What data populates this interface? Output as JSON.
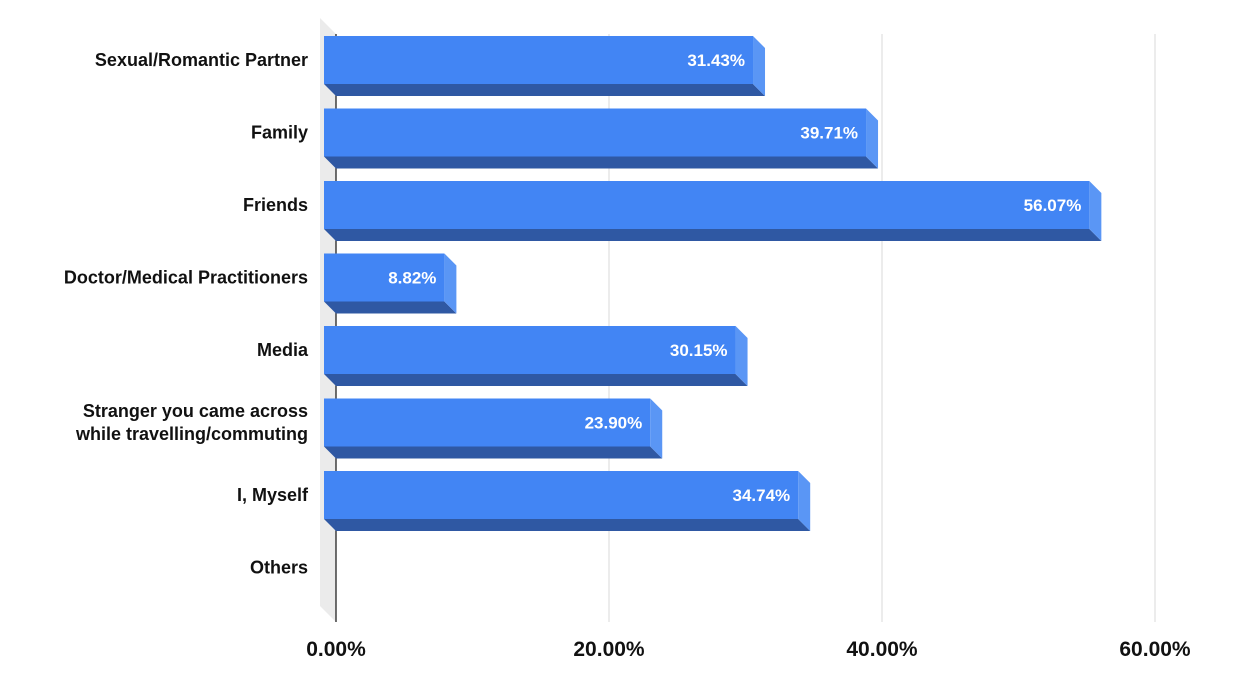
{
  "chart_data": {
    "type": "bar",
    "orientation": "horizontal",
    "style": "3d",
    "categories": [
      [
        "Sexual/Romantic Partner"
      ],
      [
        "Family"
      ],
      [
        "Friends"
      ],
      [
        "Doctor/Medical Practitioners"
      ],
      [
        "Media"
      ],
      [
        "Stranger you came across",
        "while travelling/commuting"
      ],
      [
        "I, Myself"
      ],
      [
        "Others"
      ]
    ],
    "values": [
      31.43,
      39.71,
      56.07,
      8.82,
      30.15,
      23.9,
      34.74,
      null
    ],
    "value_labels": [
      "31.43%",
      "39.71%",
      "56.07%",
      "8.82%",
      "30.15%",
      "23.90%",
      "34.74%",
      ""
    ],
    "x_ticks": [
      0,
      20,
      40,
      60
    ],
    "x_tick_labels": [
      "0.00%",
      "20.00%",
      "40.00%",
      "60.00%"
    ],
    "xlim": [
      0,
      60
    ],
    "title": "",
    "xlabel": "",
    "ylabel": "",
    "grid": true,
    "legend": "none",
    "colors": {
      "bar_face": "#4285f4",
      "bar_bottom": "#2f58a3",
      "bar_side": "#5a96f5",
      "grid": "#d9d9d9",
      "wall": "#ebebeb",
      "axis": "#111111"
    }
  }
}
